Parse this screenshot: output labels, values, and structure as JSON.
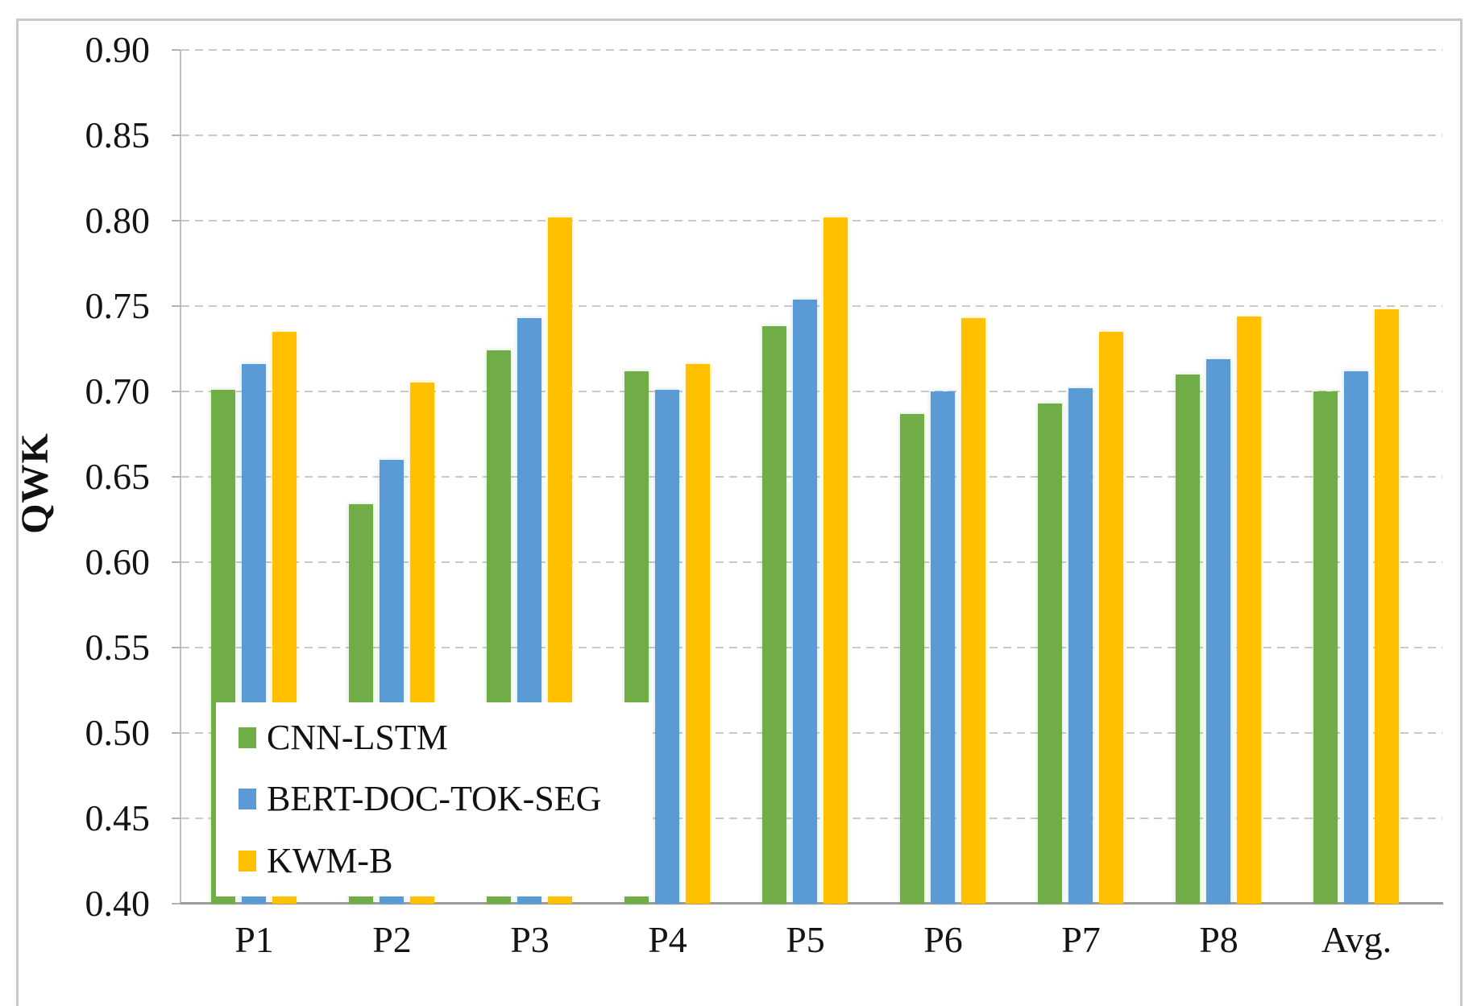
{
  "chart_data": {
    "type": "bar",
    "title": "",
    "xlabel": "",
    "ylabel": "QWK",
    "categories": [
      "P1",
      "P2",
      "P3",
      "P4",
      "P5",
      "P6",
      "P7",
      "P8",
      "Avg."
    ],
    "series": [
      {
        "name": "CNN-LSTM",
        "color": "#70AD47",
        "values": [
          0.701,
          0.634,
          0.724,
          0.712,
          0.738,
          0.687,
          0.693,
          0.71,
          0.7
        ]
      },
      {
        "name": "BERT-DOC-TOK-SEG",
        "color": "#5B9BD5",
        "values": [
          0.716,
          0.66,
          0.743,
          0.701,
          0.754,
          0.7,
          0.702,
          0.719,
          0.712
        ]
      },
      {
        "name": "KWM-B",
        "color": "#FFC000",
        "values": [
          0.735,
          0.705,
          0.802,
          0.716,
          0.802,
          0.743,
          0.735,
          0.744,
          0.748
        ]
      }
    ],
    "ylim": [
      0.4,
      0.9
    ],
    "ytick_step": 0.05,
    "ytick_labels": [
      "0.90",
      "0.85",
      "0.80",
      "0.75",
      "0.70",
      "0.65",
      "0.60",
      "0.55",
      "0.50",
      "0.45",
      "0.40"
    ],
    "grid": "horizontal-dashed",
    "legend_position": "inside-bottom-left",
    "colors": {
      "gridline": "#c9c9c9",
      "y_axis_line": "#bfbfbf",
      "x_axis_line": "#9b9b9b",
      "text": "#141414",
      "frame": "#c9c9c9",
      "background": "#ffffff"
    }
  }
}
